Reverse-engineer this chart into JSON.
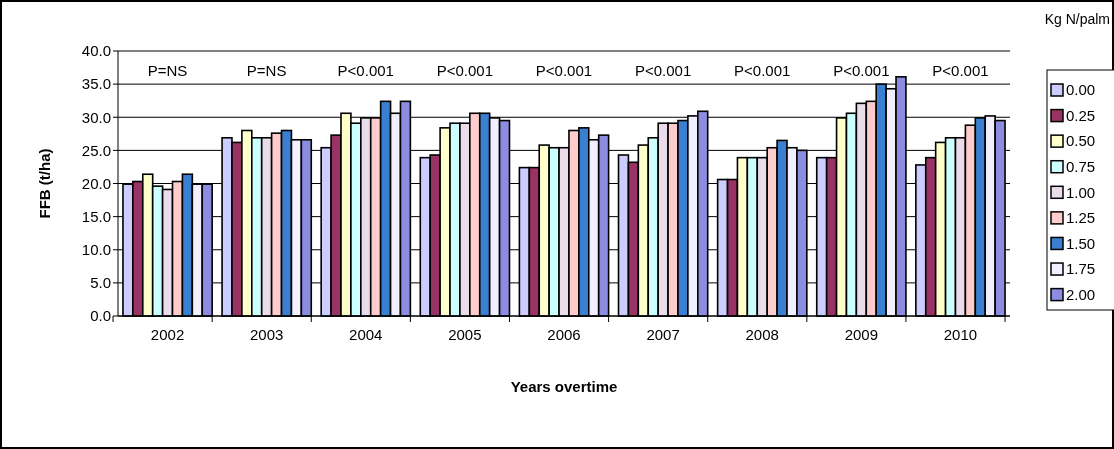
{
  "chart_data": {
    "type": "bar",
    "xlabel": "Years overtime",
    "ylabel": "FFB (t/ha)",
    "legend_title": "Kg N/palm",
    "categories": [
      "2002",
      "2003",
      "2004",
      "2005",
      "2006",
      "2007",
      "2008",
      "2009",
      "2010"
    ],
    "series": [
      {
        "name": "0.00",
        "color": "#ccccff",
        "values": [
          19.9,
          26.9,
          25.4,
          23.9,
          22.4,
          24.3,
          20.6,
          23.9,
          22.8
        ]
      },
      {
        "name": "0.25",
        "color": "#993366",
        "values": [
          20.3,
          26.2,
          27.3,
          24.3,
          22.4,
          23.2,
          20.6,
          23.9,
          23.9
        ]
      },
      {
        "name": "0.50",
        "color": "#ffffcc",
        "values": [
          21.4,
          28.0,
          30.6,
          28.4,
          25.8,
          25.8,
          23.9,
          29.9,
          26.2
        ]
      },
      {
        "name": "0.75",
        "color": "#ccffff",
        "values": [
          19.6,
          26.9,
          29.1,
          29.1,
          25.4,
          26.9,
          23.9,
          30.6,
          26.9
        ]
      },
      {
        "name": "1.00",
        "color": "#eadcea",
        "values": [
          19.1,
          26.9,
          29.9,
          29.1,
          25.4,
          29.1,
          23.9,
          32.1,
          26.9
        ]
      },
      {
        "name": "1.25",
        "color": "#ffcccc",
        "values": [
          20.3,
          27.6,
          29.9,
          30.6,
          28.0,
          29.1,
          25.4,
          32.4,
          28.8
        ]
      },
      {
        "name": "1.50",
        "color": "#3a7fd0",
        "values": [
          21.4,
          28.0,
          32.4,
          30.6,
          28.4,
          29.5,
          26.5,
          35.0,
          29.9
        ]
      },
      {
        "name": "1.75",
        "color": "#f0f0ff",
        "values": [
          19.9,
          26.6,
          30.6,
          29.9,
          26.6,
          30.2,
          25.4,
          34.3,
          30.2
        ]
      },
      {
        "name": "2.00",
        "color": "#8c8ce0",
        "values": [
          19.9,
          26.6,
          32.4,
          29.5,
          27.3,
          30.9,
          25.0,
          36.1,
          29.5
        ]
      }
    ],
    "ylim": [
      0,
      40
    ],
    "yticks": [
      {
        "value": 0,
        "label": "0.0"
      },
      {
        "value": 5,
        "label": "5.0"
      },
      {
        "value": 10,
        "label": "10.0"
      },
      {
        "value": 15,
        "label": "15.0"
      },
      {
        "value": 20,
        "label": "20.0"
      },
      {
        "value": 25,
        "label": "25.0"
      },
      {
        "value": 30,
        "label": "30.0"
      },
      {
        "value": 35,
        "label": "35.0"
      },
      {
        "value": 40,
        "label": "40.0"
      }
    ],
    "grid": "y",
    "legend": "right",
    "annotations": [
      "P=NS",
      "P=NS",
      "P<0.001",
      "P<0.001",
      "P<0.001",
      "P<0.001",
      "P<0.001",
      "P<0.001",
      "P<0.001"
    ]
  }
}
